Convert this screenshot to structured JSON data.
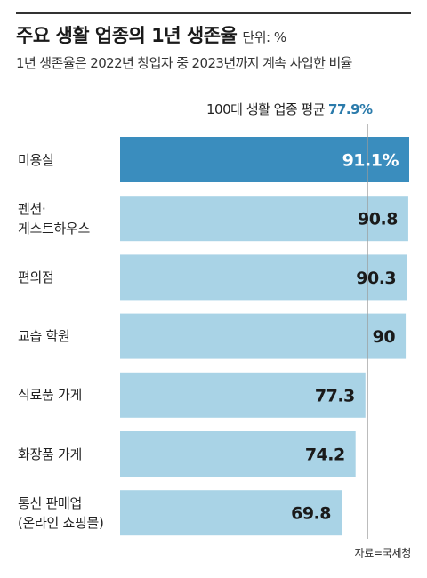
{
  "header": {
    "title": "주요 생활 업종의 1년 생존율",
    "unit": "단위: %",
    "subtitle": "1년 생존율은 2022년 창업자 중 2023년까지 계속 사업한 비율"
  },
  "average": {
    "label": "100대 생활 업종 평균",
    "value_text": "77.9%"
  },
  "source": "자료=국세청",
  "colors": {
    "highlight_bar": "#3a8dbe",
    "bar": "#a9d3e6",
    "avg_line": "#9a9a9a",
    "avg_text": "#2b7bab"
  },
  "chart_data": {
    "type": "bar",
    "orientation": "horizontal",
    "categories": [
      "미용실",
      "펜션·\n게스트하우스",
      "편의점",
      "교습 학원",
      "식료품 가게",
      "화장품 가게",
      "통신 판매업\n(온라인 쇼핑몰)"
    ],
    "values": [
      91.1,
      90.8,
      90.3,
      90,
      77.3,
      74.2,
      69.8
    ],
    "value_labels": [
      "91.1%",
      "90.8",
      "90.3",
      "90",
      "77.3",
      "74.2",
      "69.8"
    ],
    "highlight_index": 0,
    "reference_line": {
      "value": 77.9,
      "label": "100대 생활 업종 평균 77.9%"
    }
  }
}
